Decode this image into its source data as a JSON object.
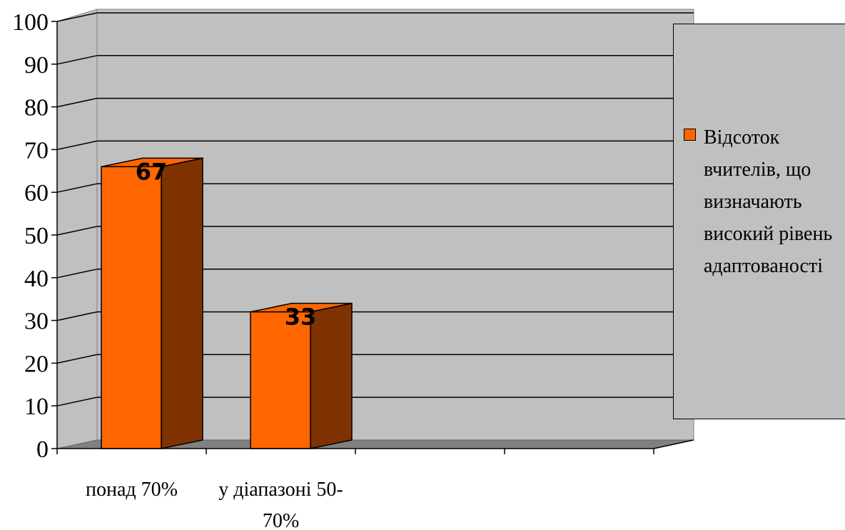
{
  "chart_data": {
    "type": "bar",
    "categories": [
      "понад 70%",
      "у діапазоні 50-70%",
      "",
      ""
    ],
    "category_lines": [
      [
        "понад 70%"
      ],
      [
        "у діапазоні 50-",
        "70%"
      ],
      [],
      []
    ],
    "series": [
      {
        "name": "Відсоток вчителів, що визначають високий рівень адаптованості",
        "values": [
          67,
          33,
          null,
          null
        ],
        "data_labels": [
          "67",
          "33"
        ],
        "color": "#ff6600",
        "side_color": "#7f3300"
      }
    ],
    "ylim": [
      0,
      100
    ],
    "yticks": [
      "0",
      "10",
      "20",
      "30",
      "40",
      "50",
      "60",
      "70",
      "80",
      "90",
      "100"
    ],
    "grid": true,
    "wall_color": "#c0c0c0",
    "floor_color": "#808080",
    "legend_position": "right",
    "three_d": true
  }
}
